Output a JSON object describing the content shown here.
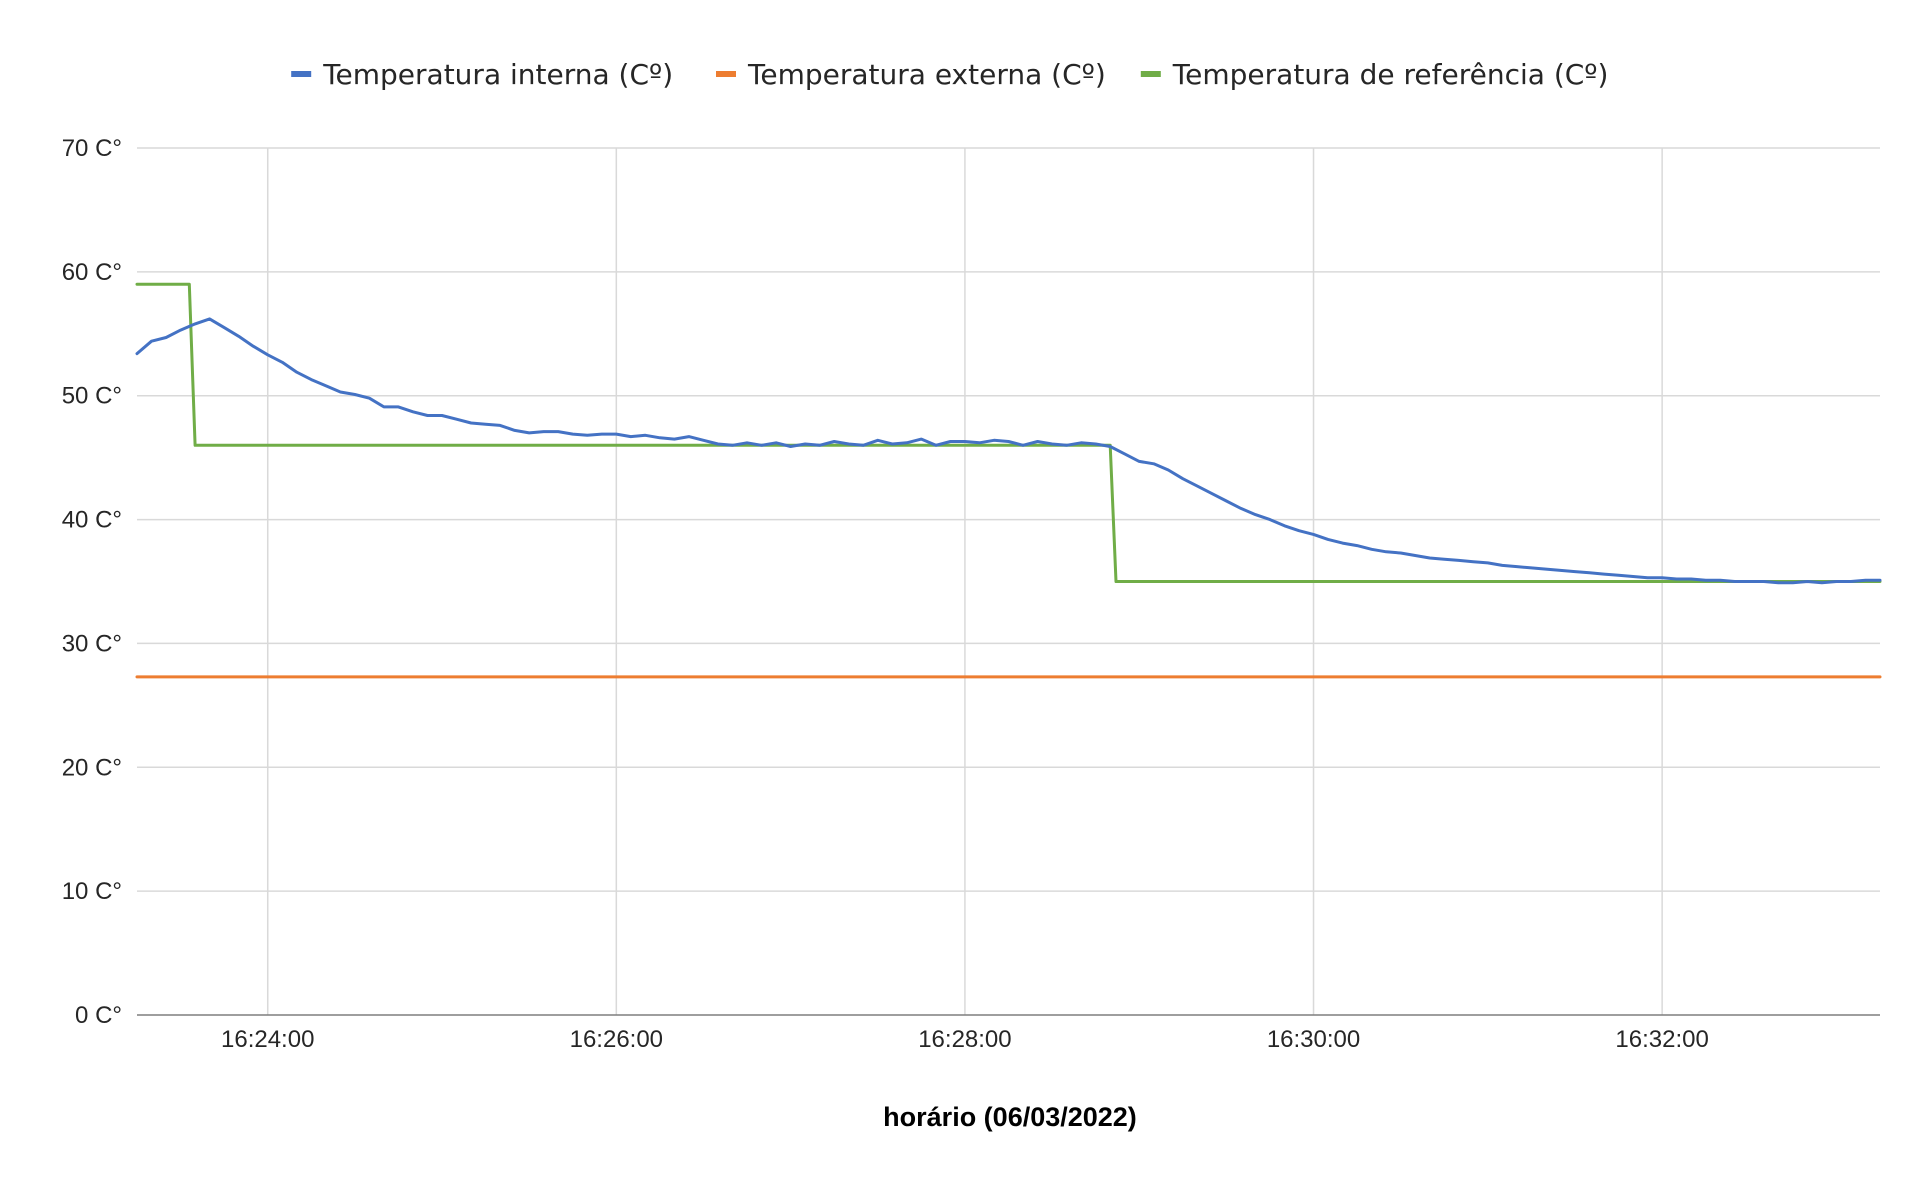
{
  "chart_data": {
    "type": "line",
    "title": "",
    "xlabel": "horário (06/03/2022)",
    "ylabel": "",
    "x_range": [
      "16:23:15",
      "16:33:15"
    ],
    "x_ticks": [
      "16:24:00",
      "16:26:00",
      "16:28:00",
      "16:30:00",
      "16:32:00"
    ],
    "ylim": [
      0,
      70
    ],
    "y_ticks": [
      0,
      10,
      20,
      30,
      40,
      50,
      60,
      70
    ],
    "y_tick_labels": [
      "0 C°",
      "10 C°",
      "20 C°",
      "30 C°",
      "40 C°",
      "50 C°",
      "60 C°",
      "70 C°"
    ],
    "grid": true,
    "legend": "top-center",
    "series": [
      {
        "name": "Temperatura interna (Cº)",
        "color": "#4472C4",
        "points": [
          [
            "16:23:15",
            53.4
          ],
          [
            "16:23:20",
            54.4
          ],
          [
            "16:23:25",
            54.7
          ],
          [
            "16:23:30",
            55.3
          ],
          [
            "16:23:35",
            55.8
          ],
          [
            "16:23:40",
            56.2
          ],
          [
            "16:23:45",
            55.5
          ],
          [
            "16:23:50",
            54.8
          ],
          [
            "16:23:55",
            54.0
          ],
          [
            "16:24:00",
            53.3
          ],
          [
            "16:24:05",
            52.7
          ],
          [
            "16:24:10",
            51.9
          ],
          [
            "16:24:15",
            51.3
          ],
          [
            "16:24:20",
            50.8
          ],
          [
            "16:24:25",
            50.3
          ],
          [
            "16:24:30",
            50.1
          ],
          [
            "16:24:35",
            49.8
          ],
          [
            "16:24:40",
            49.1
          ],
          [
            "16:24:45",
            49.1
          ],
          [
            "16:24:50",
            48.7
          ],
          [
            "16:24:55",
            48.4
          ],
          [
            "16:25:00",
            48.4
          ],
          [
            "16:25:05",
            48.1
          ],
          [
            "16:25:10",
            47.8
          ],
          [
            "16:25:15",
            47.7
          ],
          [
            "16:25:20",
            47.6
          ],
          [
            "16:25:25",
            47.2
          ],
          [
            "16:25:30",
            47.0
          ],
          [
            "16:25:35",
            47.1
          ],
          [
            "16:25:40",
            47.1
          ],
          [
            "16:25:45",
            46.9
          ],
          [
            "16:25:50",
            46.8
          ],
          [
            "16:25:55",
            46.9
          ],
          [
            "16:26:00",
            46.9
          ],
          [
            "16:26:05",
            46.7
          ],
          [
            "16:26:10",
            46.8
          ],
          [
            "16:26:15",
            46.6
          ],
          [
            "16:26:20",
            46.5
          ],
          [
            "16:26:25",
            46.7
          ],
          [
            "16:26:30",
            46.4
          ],
          [
            "16:26:35",
            46.1
          ],
          [
            "16:26:40",
            46.0
          ],
          [
            "16:26:45",
            46.2
          ],
          [
            "16:26:50",
            46.0
          ],
          [
            "16:26:55",
            46.2
          ],
          [
            "16:27:00",
            45.9
          ],
          [
            "16:27:05",
            46.1
          ],
          [
            "16:27:10",
            46.0
          ],
          [
            "16:27:15",
            46.3
          ],
          [
            "16:27:20",
            46.1
          ],
          [
            "16:27:25",
            46.0
          ],
          [
            "16:27:30",
            46.4
          ],
          [
            "16:27:35",
            46.1
          ],
          [
            "16:27:40",
            46.2
          ],
          [
            "16:27:45",
            46.5
          ],
          [
            "16:27:50",
            46.0
          ],
          [
            "16:27:55",
            46.3
          ],
          [
            "16:28:00",
            46.3
          ],
          [
            "16:28:05",
            46.2
          ],
          [
            "16:28:10",
            46.4
          ],
          [
            "16:28:15",
            46.3
          ],
          [
            "16:28:20",
            46.0
          ],
          [
            "16:28:25",
            46.3
          ],
          [
            "16:28:30",
            46.1
          ],
          [
            "16:28:35",
            46.0
          ],
          [
            "16:28:40",
            46.2
          ],
          [
            "16:28:45",
            46.1
          ],
          [
            "16:28:50",
            45.9
          ],
          [
            "16:28:55",
            45.3
          ],
          [
            "16:29:00",
            44.7
          ],
          [
            "16:29:05",
            44.5
          ],
          [
            "16:29:10",
            44.0
          ],
          [
            "16:29:15",
            43.3
          ],
          [
            "16:29:20",
            42.7
          ],
          [
            "16:29:25",
            42.1
          ],
          [
            "16:29:30",
            41.5
          ],
          [
            "16:29:35",
            40.9
          ],
          [
            "16:29:40",
            40.4
          ],
          [
            "16:29:45",
            40.0
          ],
          [
            "16:29:50",
            39.5
          ],
          [
            "16:29:55",
            39.1
          ],
          [
            "16:30:00",
            38.8
          ],
          [
            "16:30:05",
            38.4
          ],
          [
            "16:30:10",
            38.1
          ],
          [
            "16:30:15",
            37.9
          ],
          [
            "16:30:20",
            37.6
          ],
          [
            "16:30:25",
            37.4
          ],
          [
            "16:30:30",
            37.3
          ],
          [
            "16:30:35",
            37.1
          ],
          [
            "16:30:40",
            36.9
          ],
          [
            "16:30:45",
            36.8
          ],
          [
            "16:30:50",
            36.7
          ],
          [
            "16:30:55",
            36.6
          ],
          [
            "16:31:00",
            36.5
          ],
          [
            "16:31:05",
            36.3
          ],
          [
            "16:31:10",
            36.2
          ],
          [
            "16:31:15",
            36.1
          ],
          [
            "16:31:20",
            36.0
          ],
          [
            "16:31:25",
            35.9
          ],
          [
            "16:31:30",
            35.8
          ],
          [
            "16:31:35",
            35.7
          ],
          [
            "16:31:40",
            35.6
          ],
          [
            "16:31:45",
            35.5
          ],
          [
            "16:31:50",
            35.4
          ],
          [
            "16:31:55",
            35.3
          ],
          [
            "16:32:00",
            35.3
          ],
          [
            "16:32:05",
            35.2
          ],
          [
            "16:32:10",
            35.2
          ],
          [
            "16:32:15",
            35.1
          ],
          [
            "16:32:20",
            35.1
          ],
          [
            "16:32:25",
            35.0
          ],
          [
            "16:32:30",
            35.0
          ],
          [
            "16:32:35",
            35.0
          ],
          [
            "16:32:40",
            34.9
          ],
          [
            "16:32:45",
            34.9
          ],
          [
            "16:32:50",
            35.0
          ],
          [
            "16:32:55",
            34.9
          ],
          [
            "16:33:00",
            35.0
          ],
          [
            "16:33:05",
            35.0
          ],
          [
            "16:33:10",
            35.1
          ],
          [
            "16:33:15",
            35.1
          ]
        ]
      },
      {
        "name": "Temperatura externa (Cº)",
        "color": "#ED7D31",
        "points": [
          [
            "16:23:15",
            27.3
          ],
          [
            "16:33:15",
            27.3
          ]
        ]
      },
      {
        "name": "Temperatura de referência (Cº)",
        "color": "#70AD47",
        "points": [
          [
            "16:23:15",
            59.0
          ],
          [
            "16:23:33",
            59.0
          ],
          [
            "16:23:35",
            46.0
          ],
          [
            "16:28:50",
            46.0
          ],
          [
            "16:28:52",
            35.0
          ],
          [
            "16:33:15",
            35.0
          ]
        ]
      }
    ]
  }
}
